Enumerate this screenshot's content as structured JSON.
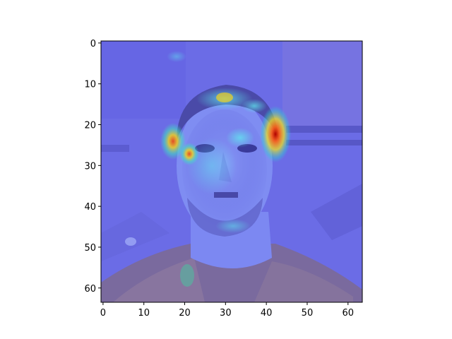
{
  "figure": {
    "type": "image-heatmap-overlay",
    "image_description": "64x64 pixelated photo of a man's face with a jet colormap saliency overlay",
    "x_ticks": [
      "0",
      "10",
      "20",
      "30",
      "40",
      "50",
      "60"
    ],
    "y_ticks": [
      "0",
      "10",
      "20",
      "30",
      "40",
      "50",
      "60"
    ],
    "x_range": [
      -0.5,
      63.5
    ],
    "y_range": [
      -0.5,
      63.5
    ],
    "colormap": "jet",
    "background_tint": "#6a6ae8"
  }
}
